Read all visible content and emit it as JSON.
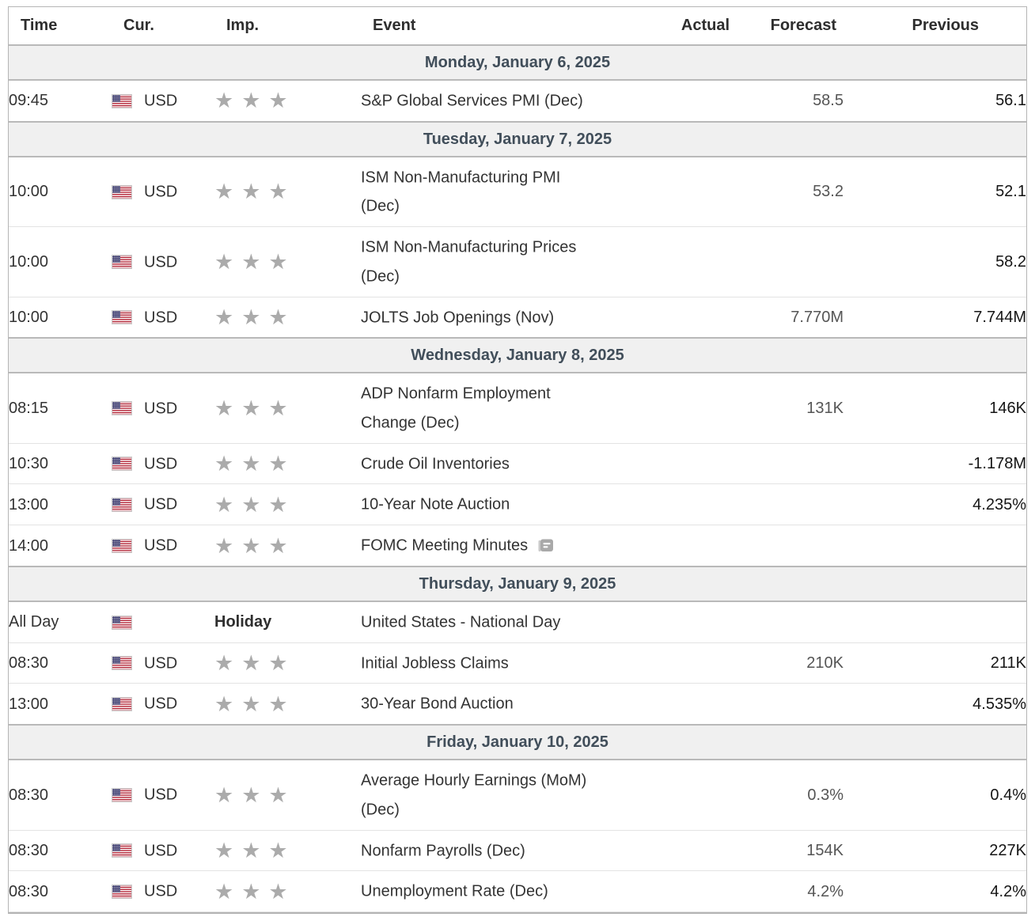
{
  "calendar": {
    "columns": {
      "time": "Time",
      "currency": "Cur.",
      "importance": "Imp.",
      "event": "Event",
      "actual": "Actual",
      "forecast": "Forecast",
      "previous": "Previous"
    },
    "star_glyph": "★",
    "flag_name": "us-flag",
    "colors": {
      "day_header_bg": "#f0f0f0",
      "day_header_text": "#414e5a",
      "strong_border": "#b9b9b9",
      "light_border": "#e3e3e3",
      "star": "#ababab",
      "forecast_text": "#555555",
      "previous_text": "#151515",
      "flag_red": "#b22234",
      "flag_blue": "#3c3b6e"
    },
    "days": [
      {
        "label": "Monday, January 6, 2025",
        "rows": [
          {
            "time": "09:45",
            "currency": "USD",
            "stars": 3,
            "event": "S&P Global Services PMI (Dec)",
            "actual": "",
            "forecast": "58.5",
            "previous": "56.1"
          }
        ]
      },
      {
        "label": "Tuesday, January 7, 2025",
        "rows": [
          {
            "time": "10:00",
            "currency": "USD",
            "stars": 3,
            "event": "ISM Non-Manufacturing PMI\n(Dec)",
            "actual": "",
            "forecast": "53.2",
            "previous": "52.1"
          },
          {
            "time": "10:00",
            "currency": "USD",
            "stars": 3,
            "event": "ISM Non-Manufacturing Prices\n(Dec)",
            "actual": "",
            "forecast": "",
            "previous": "58.2"
          },
          {
            "time": "10:00",
            "currency": "USD",
            "stars": 3,
            "event": "JOLTS Job Openings (Nov)",
            "actual": "",
            "forecast": "7.770M",
            "previous": "7.744M"
          }
        ]
      },
      {
        "label": "Wednesday, January 8, 2025",
        "rows": [
          {
            "time": "08:15",
            "currency": "USD",
            "stars": 3,
            "event": "ADP Nonfarm Employment\nChange (Dec)",
            "actual": "",
            "forecast": "131K",
            "previous": "146K"
          },
          {
            "time": "10:30",
            "currency": "USD",
            "stars": 3,
            "event": "Crude Oil Inventories",
            "actual": "",
            "forecast": "",
            "previous": "-1.178M"
          },
          {
            "time": "13:00",
            "currency": "USD",
            "stars": 3,
            "event": "10-Year Note Auction",
            "actual": "",
            "forecast": "",
            "previous": "4.235%"
          },
          {
            "time": "14:00",
            "currency": "USD",
            "stars": 3,
            "event": "FOMC Meeting Minutes",
            "minutes_icon": true,
            "actual": "",
            "forecast": "",
            "previous": ""
          }
        ]
      },
      {
        "label": "Thursday, January 9, 2025",
        "rows": [
          {
            "time": "All Day",
            "currency": "",
            "holiday": "Holiday",
            "event": "United States - National Day",
            "actual": "",
            "forecast": "",
            "previous": ""
          },
          {
            "time": "08:30",
            "currency": "USD",
            "stars": 3,
            "event": "Initial Jobless Claims",
            "actual": "",
            "forecast": "210K",
            "previous": "211K"
          },
          {
            "time": "13:00",
            "currency": "USD",
            "stars": 3,
            "event": "30-Year Bond Auction",
            "actual": "",
            "forecast": "",
            "previous": "4.535%"
          }
        ]
      },
      {
        "label": "Friday, January 10, 2025",
        "rows": [
          {
            "time": "08:30",
            "currency": "USD",
            "stars": 3,
            "event": "Average Hourly Earnings (MoM)\n(Dec)",
            "actual": "",
            "forecast": "0.3%",
            "previous": "0.4%"
          },
          {
            "time": "08:30",
            "currency": "USD",
            "stars": 3,
            "event": "Nonfarm Payrolls (Dec)",
            "actual": "",
            "forecast": "154K",
            "previous": "227K"
          },
          {
            "time": "08:30",
            "currency": "USD",
            "stars": 3,
            "event": "Unemployment Rate (Dec)",
            "actual": "",
            "forecast": "4.2%",
            "previous": "4.2%"
          }
        ]
      }
    ]
  }
}
